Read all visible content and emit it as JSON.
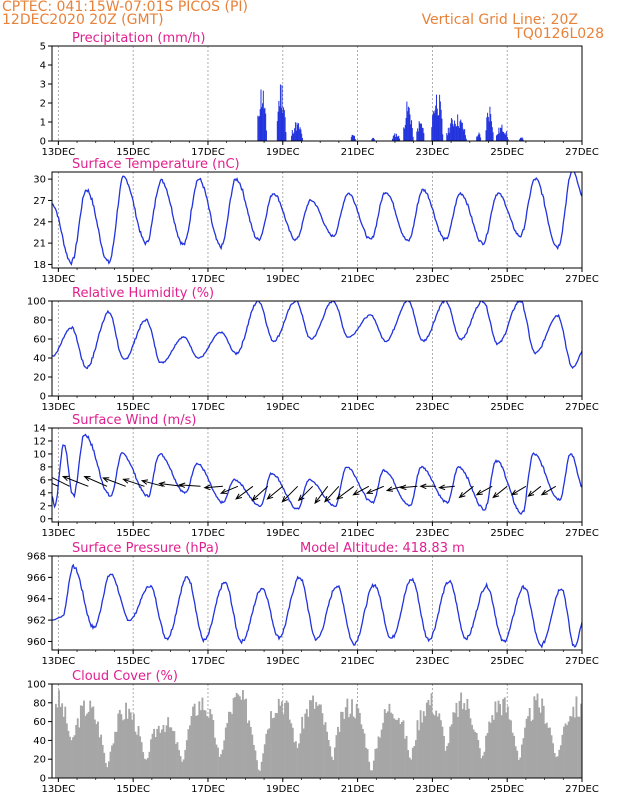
{
  "header": {
    "line1": "CPTEC:   041:15W-07:01S   PICOS (PI)",
    "line2": "12DEC2020 20Z (GMT)",
    "grid_note": "Vertical Grid Line: 20Z",
    "run_code": "TQ0126L028"
  },
  "colors": {
    "header": "#e8823a",
    "title": "#e0208f",
    "line": "#2233dd",
    "cloud": "#a6a6a6",
    "grid": "#9a9a9a"
  },
  "chart_data": [
    {
      "type": "bar",
      "title": "Precipitation (mm/h)",
      "y_ticks": [
        0,
        1,
        2,
        3,
        4,
        5
      ],
      "ylim": [
        0,
        5
      ],
      "x_tick_labels": [
        "13DEC",
        "15DEC",
        "17DEC",
        "19DEC",
        "21DEC",
        "23DEC",
        "25DEC",
        "27DEC"
      ],
      "x_tick_days": [
        13,
        15,
        17,
        19,
        21,
        23,
        25,
        27
      ],
      "xlim_days": [
        12.83,
        27.0
      ],
      "grid": "vertical dashed",
      "events": [
        {
          "start": 18.3,
          "end": 18.58,
          "peak": 3.2
        },
        {
          "start": 18.82,
          "end": 19.1,
          "peak": 3.4
        },
        {
          "start": 19.2,
          "end": 19.55,
          "peak": 1.1
        },
        {
          "start": 20.8,
          "end": 20.95,
          "peak": 0.4
        },
        {
          "start": 21.35,
          "end": 21.45,
          "peak": 0.25
        },
        {
          "start": 21.9,
          "end": 22.15,
          "peak": 0.45
        },
        {
          "start": 22.2,
          "end": 22.5,
          "peak": 2.2
        },
        {
          "start": 22.55,
          "end": 22.8,
          "peak": 1.2
        },
        {
          "start": 22.95,
          "end": 23.3,
          "peak": 2.9
        },
        {
          "start": 23.35,
          "end": 23.95,
          "peak": 1.5
        },
        {
          "start": 24.15,
          "end": 24.3,
          "peak": 0.5
        },
        {
          "start": 24.4,
          "end": 24.65,
          "peak": 2.1
        },
        {
          "start": 24.68,
          "end": 25.05,
          "peak": 0.9
        },
        {
          "start": 25.3,
          "end": 25.45,
          "peak": 0.2
        }
      ]
    },
    {
      "type": "line",
      "title": "Surface Temperature (nC)",
      "y_ticks": [
        18,
        21,
        24,
        27,
        30
      ],
      "ylim": [
        17.5,
        31
      ],
      "x_tick_labels": [
        "13DEC",
        "15DEC",
        "17DEC",
        "19DEC",
        "21DEC",
        "23DEC",
        "25DEC",
        "27DEC"
      ],
      "x_tick_days": [
        13,
        15,
        17,
        19,
        21,
        23,
        25,
        27
      ],
      "xlim_days": [
        12.83,
        27.0
      ],
      "grid": "vertical dashed",
      "series": [
        {
          "max": [
            [
              13.75,
              28.5
            ],
            [
              14.75,
              30.2
            ],
            [
              15.75,
              29.8
            ],
            [
              16.75,
              30.0
            ],
            [
              17.75,
              30.0
            ],
            [
              18.75,
              28.0
            ],
            [
              19.75,
              27.0
            ],
            [
              20.75,
              28.0
            ],
            [
              21.75,
              28.2
            ],
            [
              22.75,
              28.5
            ],
            [
              23.75,
              28.0
            ],
            [
              24.75,
              28.0
            ],
            [
              25.75,
              30.0
            ],
            [
              26.75,
              31.2
            ]
          ],
          "min": [
            [
              13.35,
              18.3
            ],
            [
              14.35,
              18.3
            ],
            [
              15.35,
              21.0
            ],
            [
              16.35,
              20.8
            ],
            [
              17.35,
              20.5
            ],
            [
              18.35,
              21.5
            ],
            [
              19.35,
              21.5
            ],
            [
              20.35,
              22.0
            ],
            [
              21.35,
              21.5
            ],
            [
              22.35,
              21.3
            ],
            [
              23.35,
              21.5
            ],
            [
              24.35,
              21.0
            ],
            [
              25.35,
              22.0
            ],
            [
              26.35,
              20.5
            ]
          ],
          "start": 26.5,
          "end": 27.3
        }
      ]
    },
    {
      "type": "line",
      "title": "Relative Humidity (%)",
      "y_ticks": [
        0,
        20,
        40,
        60,
        80,
        100
      ],
      "ylim": [
        0,
        100
      ],
      "x_tick_labels": [
        "13DEC",
        "15DEC",
        "17DEC",
        "19DEC",
        "21DEC",
        "23DEC",
        "25DEC",
        "27DEC"
      ],
      "x_tick_days": [
        13,
        15,
        17,
        19,
        21,
        23,
        25,
        27
      ],
      "xlim_days": [
        12.83,
        27.0
      ],
      "grid": "vertical dashed",
      "series": [
        {
          "max": [
            [
              13.35,
              72
            ],
            [
              14.35,
              88
            ],
            [
              15.35,
              80
            ],
            [
              16.35,
              62
            ],
            [
              17.35,
              67
            ],
            [
              18.35,
              100
            ],
            [
              19.35,
              100
            ],
            [
              20.35,
              100
            ],
            [
              21.35,
              85
            ],
            [
              22.35,
              100
            ],
            [
              23.35,
              100
            ],
            [
              24.35,
              100
            ],
            [
              25.35,
              100
            ],
            [
              26.35,
              85
            ]
          ],
          "min": [
            [
              13.75,
              30
            ],
            [
              14.75,
              38
            ],
            [
              15.75,
              35
            ],
            [
              16.75,
              40
            ],
            [
              17.75,
              45
            ],
            [
              18.75,
              58
            ],
            [
              19.75,
              60
            ],
            [
              20.75,
              62
            ],
            [
              21.75,
              58
            ],
            [
              22.75,
              58
            ],
            [
              23.75,
              60
            ],
            [
              24.75,
              55
            ],
            [
              25.75,
              45
            ],
            [
              26.75,
              30
            ]
          ],
          "start": 42,
          "end": 48
        }
      ]
    },
    {
      "type": "line",
      "title": "Surface Wind (m/s)",
      "y_ticks": [
        0,
        2,
        4,
        6,
        8,
        10,
        12,
        14
      ],
      "ylim": [
        -0.5,
        14
      ],
      "x_tick_labels": [
        "13DEC",
        "15DEC",
        "17DEC",
        "19DEC",
        "21DEC",
        "23DEC",
        "25DEC",
        "27DEC"
      ],
      "x_tick_days": [
        13,
        15,
        17,
        19,
        21,
        23,
        25,
        27
      ],
      "xlim_days": [
        12.83,
        27.0
      ],
      "grid": "vertical dashed",
      "series": [
        {
          "max": [
            [
              13.15,
              11.5
            ],
            [
              13.7,
              13.0
            ],
            [
              14.7,
              10.0
            ],
            [
              15.7,
              10.0
            ],
            [
              16.7,
              8.5
            ],
            [
              17.7,
              6.0
            ],
            [
              18.7,
              7.0
            ],
            [
              19.7,
              6.0
            ],
            [
              20.7,
              8.0
            ],
            [
              21.7,
              7.5
            ],
            [
              22.7,
              8.0
            ],
            [
              23.7,
              8.0
            ],
            [
              24.7,
              9.0
            ],
            [
              25.7,
              10.0
            ],
            [
              26.7,
              10.0
            ]
          ],
          "min": [
            [
              12.9,
              2.0
            ],
            [
              13.4,
              3.5
            ],
            [
              14.4,
              3.5
            ],
            [
              15.4,
              3.5
            ],
            [
              16.4,
              4.0
            ],
            [
              17.4,
              2.5
            ],
            [
              18.4,
              2.0
            ],
            [
              19.4,
              1.5
            ],
            [
              20.4,
              2.0
            ],
            [
              21.4,
              2.5
            ],
            [
              22.4,
              2.0
            ],
            [
              23.4,
              2.5
            ],
            [
              24.4,
              1.5
            ],
            [
              25.4,
              0.8
            ],
            [
              26.4,
              3.0
            ]
          ],
          "start": 3.5,
          "end": 4.5
        }
      ],
      "wind_vectors": [
        {
          "day": 13.0,
          "u": -1.0,
          "v": 0.45
        },
        {
          "day": 13.3,
          "u": -0.9,
          "v": 0.45
        },
        {
          "day": 13.8,
          "u": -0.9,
          "v": 0.35
        },
        {
          "day": 14.3,
          "u": -0.8,
          "v": 0.35
        },
        {
          "day": 14.8,
          "u": -0.8,
          "v": 0.3
        },
        {
          "day": 15.3,
          "u": -0.75,
          "v": 0.25
        },
        {
          "day": 15.8,
          "u": -0.75,
          "v": 0.2
        },
        {
          "day": 16.3,
          "u": -0.8,
          "v": 0.1
        },
        {
          "day": 16.8,
          "u": -0.75,
          "v": 0.05
        },
        {
          "day": 17.4,
          "u": -0.65,
          "v": -0.05
        },
        {
          "day": 17.8,
          "u": -0.6,
          "v": -0.25
        },
        {
          "day": 18.2,
          "u": -0.6,
          "v": -0.45
        },
        {
          "day": 18.6,
          "u": -0.55,
          "v": -0.5
        },
        {
          "day": 19.0,
          "u": -0.55,
          "v": -0.45
        },
        {
          "day": 19.4,
          "u": -0.55,
          "v": -0.55
        },
        {
          "day": 19.8,
          "u": -0.5,
          "v": -0.5
        },
        {
          "day": 20.2,
          "u": -0.45,
          "v": -0.6
        },
        {
          "day": 20.5,
          "u": -0.5,
          "v": -0.55
        },
        {
          "day": 20.9,
          "u": -0.6,
          "v": -0.45
        },
        {
          "day": 21.3,
          "u": -0.55,
          "v": -0.3
        },
        {
          "day": 21.7,
          "u": -0.6,
          "v": -0.25
        },
        {
          "day": 22.2,
          "u": -0.55,
          "v": -0.15
        },
        {
          "day": 22.6,
          "u": -0.6,
          "v": -0.05
        },
        {
          "day": 23.1,
          "u": -0.55,
          "v": 0.0
        },
        {
          "day": 23.6,
          "u": -0.55,
          "v": -0.05
        },
        {
          "day": 24.1,
          "u": -0.5,
          "v": -0.4
        },
        {
          "day": 24.6,
          "u": -0.55,
          "v": -0.3
        },
        {
          "day": 25.0,
          "u": -0.5,
          "v": -0.4
        },
        {
          "day": 25.5,
          "u": -0.5,
          "v": -0.3
        },
        {
          "day": 25.9,
          "u": -0.45,
          "v": -0.35
        },
        {
          "day": 26.3,
          "u": -0.5,
          "v": -0.3
        }
      ]
    },
    {
      "type": "line",
      "title": "Surface Pressure (hPa)",
      "annotation": "Model Altitude: 418.83 m",
      "y_ticks": [
        960,
        962,
        964,
        966,
        968
      ],
      "ylim": [
        959.2,
        968
      ],
      "x_tick_labels": [
        "13DEC",
        "15DEC",
        "17DEC",
        "19DEC",
        "21DEC",
        "23DEC",
        "25DEC",
        "27DEC"
      ],
      "x_tick_days": [
        13,
        15,
        17,
        19,
        21,
        23,
        25,
        27
      ],
      "xlim_days": [
        12.83,
        27.0
      ],
      "grid": "vertical dashed",
      "series": [
        {
          "max": [
            [
              13.4,
              967.0
            ],
            [
              14.4,
              966.3
            ],
            [
              15.45,
              965.2
            ],
            [
              16.45,
              966.0
            ],
            [
              17.45,
              965.5
            ],
            [
              18.45,
              965.0
            ],
            [
              19.45,
              966.0
            ],
            [
              20.45,
              965.2
            ],
            [
              21.45,
              965.3
            ],
            [
              22.45,
              965.8
            ],
            [
              23.45,
              965.6
            ],
            [
              24.45,
              965.2
            ],
            [
              25.45,
              965.1
            ],
            [
              26.45,
              965.0
            ]
          ],
          "min": [
            [
              13.1,
              962.3
            ],
            [
              13.95,
              961.3
            ],
            [
              14.9,
              962.0
            ],
            [
              15.9,
              960.3
            ],
            [
              16.9,
              960.1
            ],
            [
              17.9,
              960.0
            ],
            [
              18.9,
              960.4
            ],
            [
              19.9,
              960.2
            ],
            [
              20.9,
              959.8
            ],
            [
              21.9,
              960.3
            ],
            [
              22.9,
              960.2
            ],
            [
              23.9,
              960.3
            ],
            [
              24.9,
              960.0
            ],
            [
              25.9,
              959.6
            ],
            [
              26.8,
              959.5
            ]
          ],
          "start": 962.0,
          "end": 962.0
        }
      ]
    },
    {
      "type": "bar",
      "title": "Cloud Cover (%)",
      "y_ticks": [
        0,
        20,
        40,
        60,
        80,
        100
      ],
      "ylim": [
        0,
        100
      ],
      "x_tick_labels": [
        "13DEC",
        "15DEC",
        "17DEC",
        "19DEC",
        "21DEC",
        "23DEC",
        "25DEC",
        "27DEC"
      ],
      "x_tick_days": [
        13,
        15,
        17,
        19,
        21,
        23,
        25,
        27
      ],
      "xlim_days": [
        12.83,
        27.0
      ],
      "grid": "vertical dashed",
      "daily_peaks": [
        {
          "day": 12.9,
          "peak": 95
        },
        {
          "day": 13.75,
          "peak": 85
        },
        {
          "day": 14.8,
          "peak": 80
        },
        {
          "day": 15.8,
          "peak": 65
        },
        {
          "day": 16.8,
          "peak": 90
        },
        {
          "day": 17.8,
          "peak": 95
        },
        {
          "day": 18.9,
          "peak": 95
        },
        {
          "day": 19.8,
          "peak": 90
        },
        {
          "day": 20.8,
          "peak": 88
        },
        {
          "day": 21.9,
          "peak": 85
        },
        {
          "day": 22.9,
          "peak": 92
        },
        {
          "day": 23.8,
          "peak": 90
        },
        {
          "day": 24.8,
          "peak": 90
        },
        {
          "day": 25.8,
          "peak": 88
        },
        {
          "day": 26.8,
          "peak": 85
        }
      ],
      "daily_min": 3
    }
  ]
}
